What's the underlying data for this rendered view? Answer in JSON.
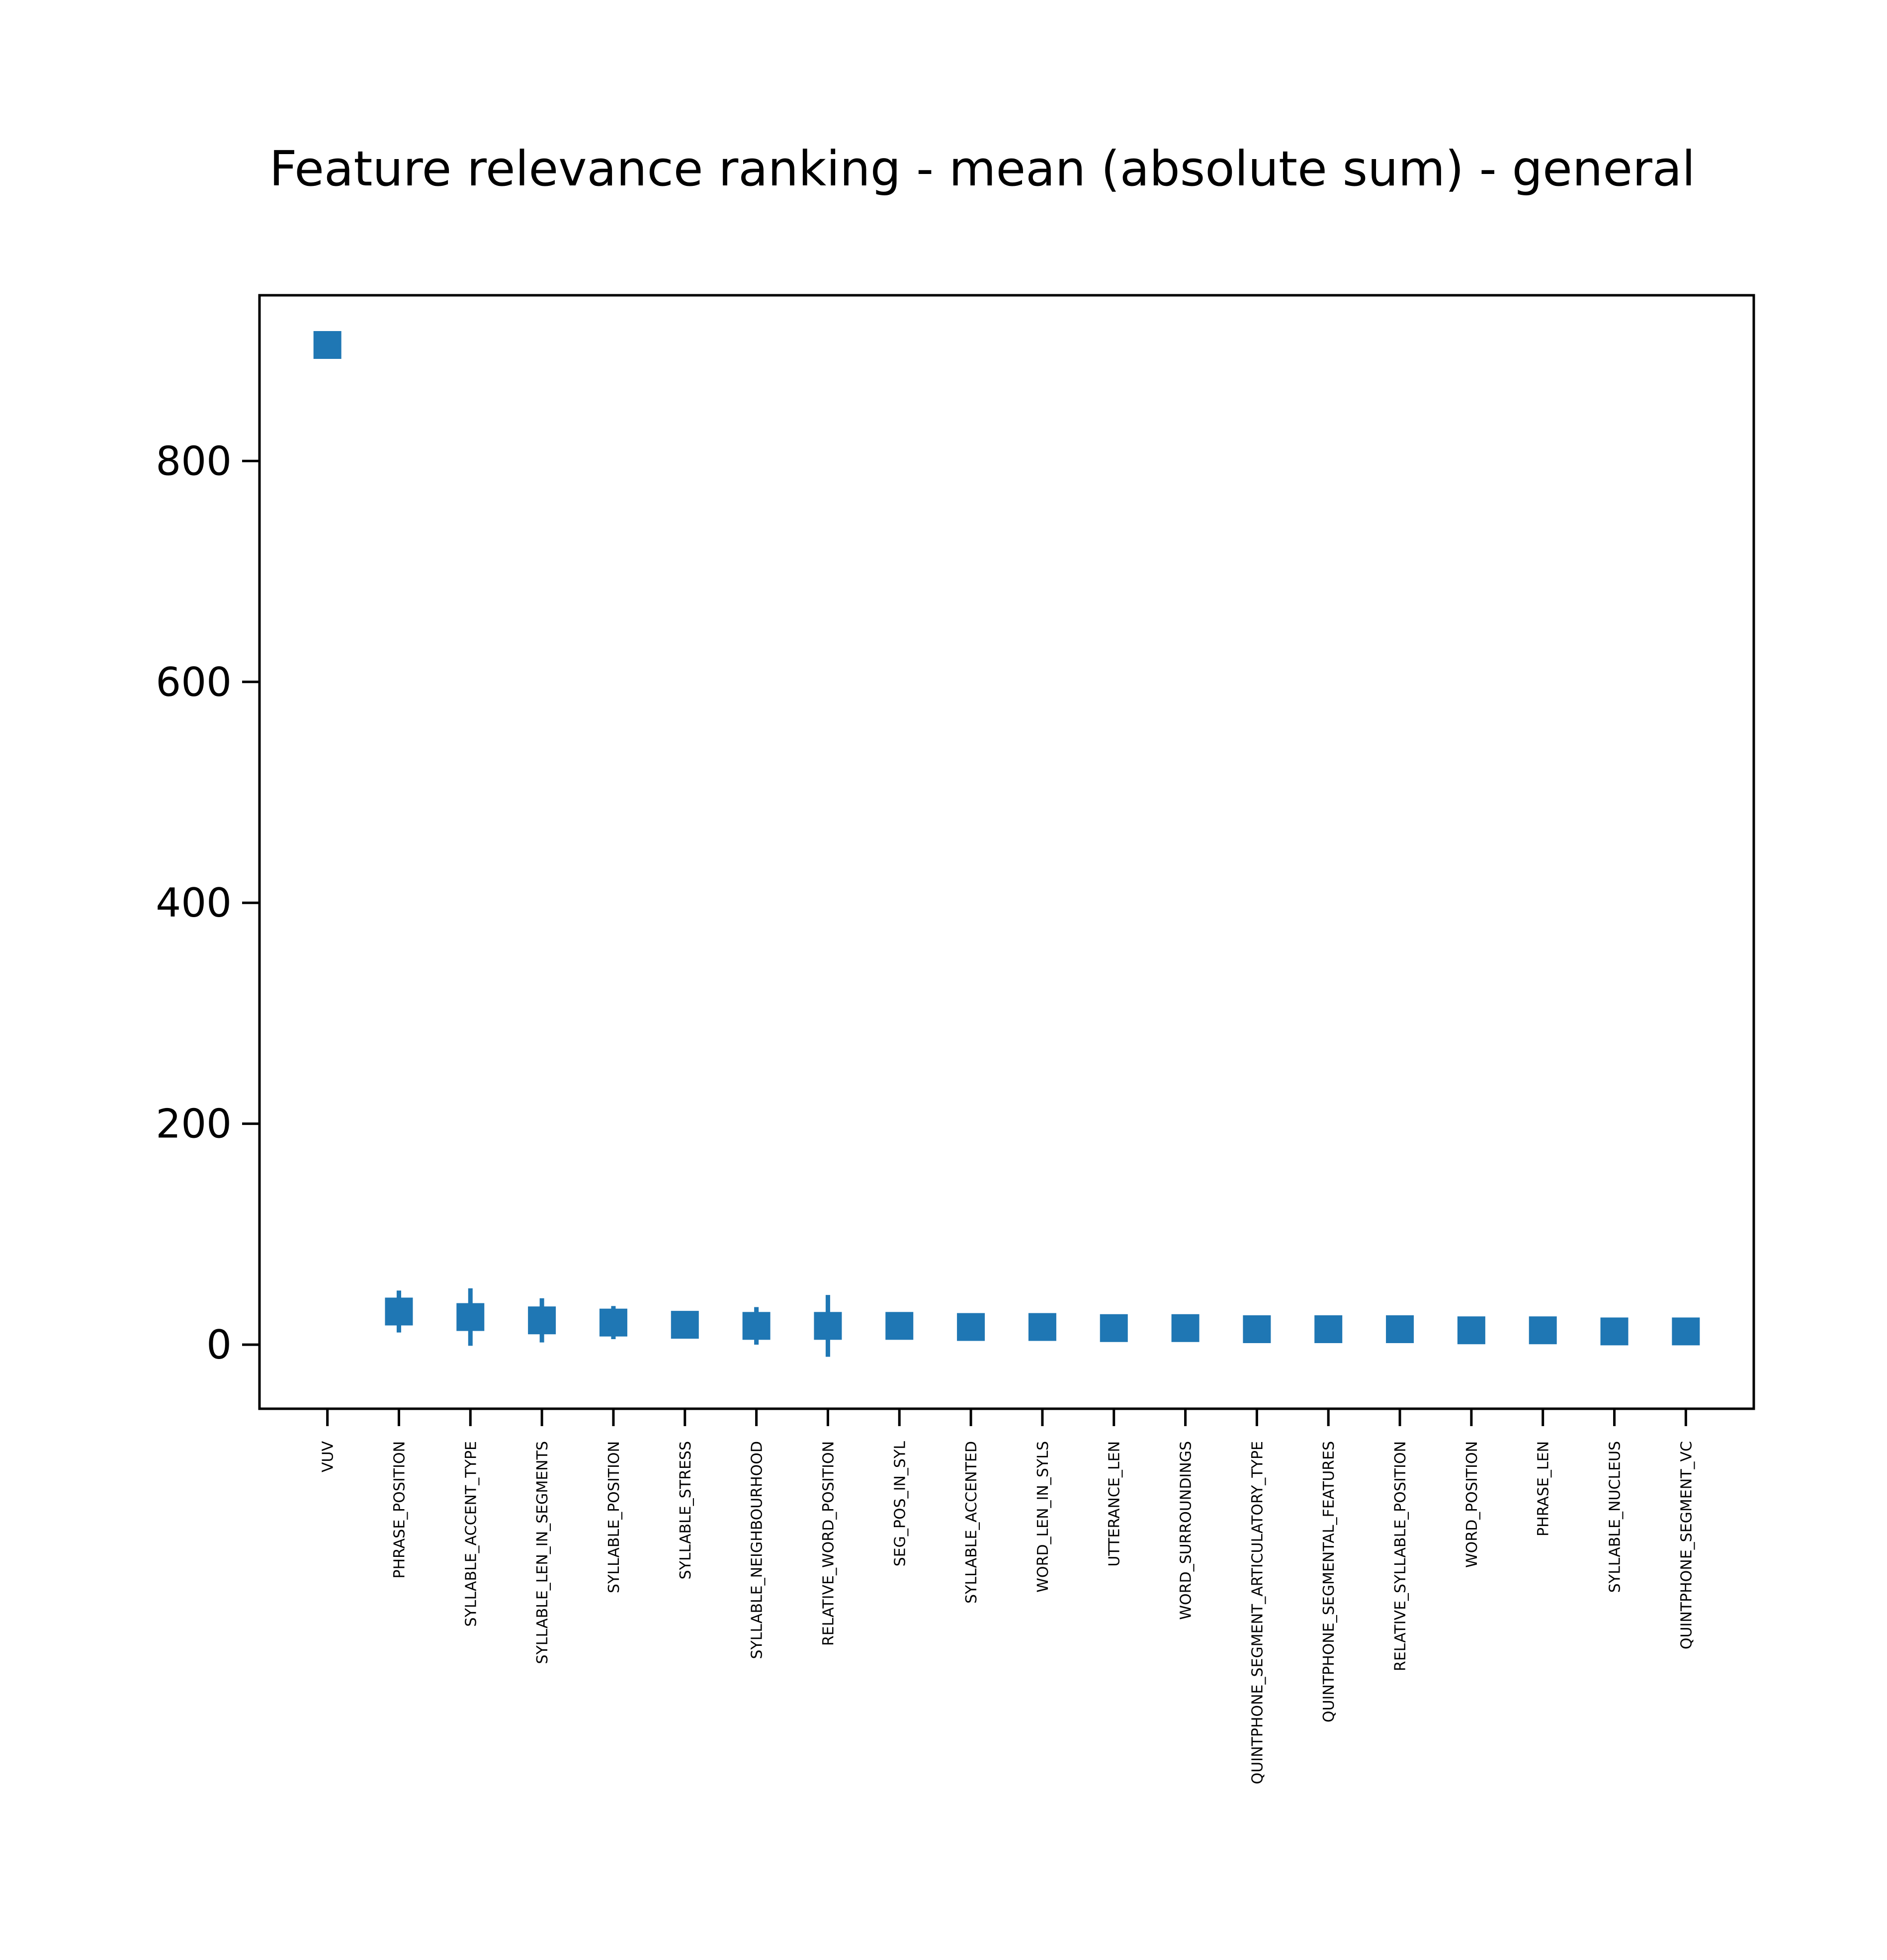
{
  "chart_data": {
    "type": "scatter",
    "title": "Feature relevance ranking - mean (absolute sum) - general",
    "xlabel": "",
    "ylabel": "",
    "ylim": [
      -58,
      950
    ],
    "yticks": [
      0,
      200,
      400,
      600,
      800
    ],
    "grid": false,
    "marker": "square",
    "color": "#1f77b4",
    "categories": [
      "VUV",
      "PHRASE_POSITION",
      "SYLLABLE_ACCENT_TYPE",
      "SYLLABLE_LEN_IN_SEGMENTS",
      "SYLLABLE_POSITION",
      "SYLLABLE_STRESS",
      "SYLLABLE_NEIGHBOURHOOD",
      "RELATIVE_WORD_POSITION",
      "SEG_POS_IN_SYL",
      "SYLLABLE_ACCENTED",
      "WORD_LEN_IN_SYLS",
      "UTTERANCE_LEN",
      "WORD_SURROUNDINGS",
      "QUINTPHONE_SEGMENT_ARTICULATORY_TYPE",
      "QUINTPHONE_SEGMENTAL_FEATURES",
      "RELATIVE_SYLLABLE_POSITION",
      "WORD_POSITION",
      "PHRASE_LEN",
      "SYLLABLE_NUCLEUS",
      "QUINTPHONE_SEGMENT_VC"
    ],
    "values": [
      905,
      30,
      25,
      22,
      20,
      18,
      17,
      17,
      17,
      16,
      16,
      15,
      15,
      14,
      14,
      14,
      13,
      13,
      12,
      12
    ],
    "error": [
      1,
      19,
      26,
      20,
      15,
      4,
      17,
      28,
      4,
      4,
      4,
      4,
      4,
      4,
      4,
      4,
      4,
      4,
      4,
      4
    ]
  }
}
